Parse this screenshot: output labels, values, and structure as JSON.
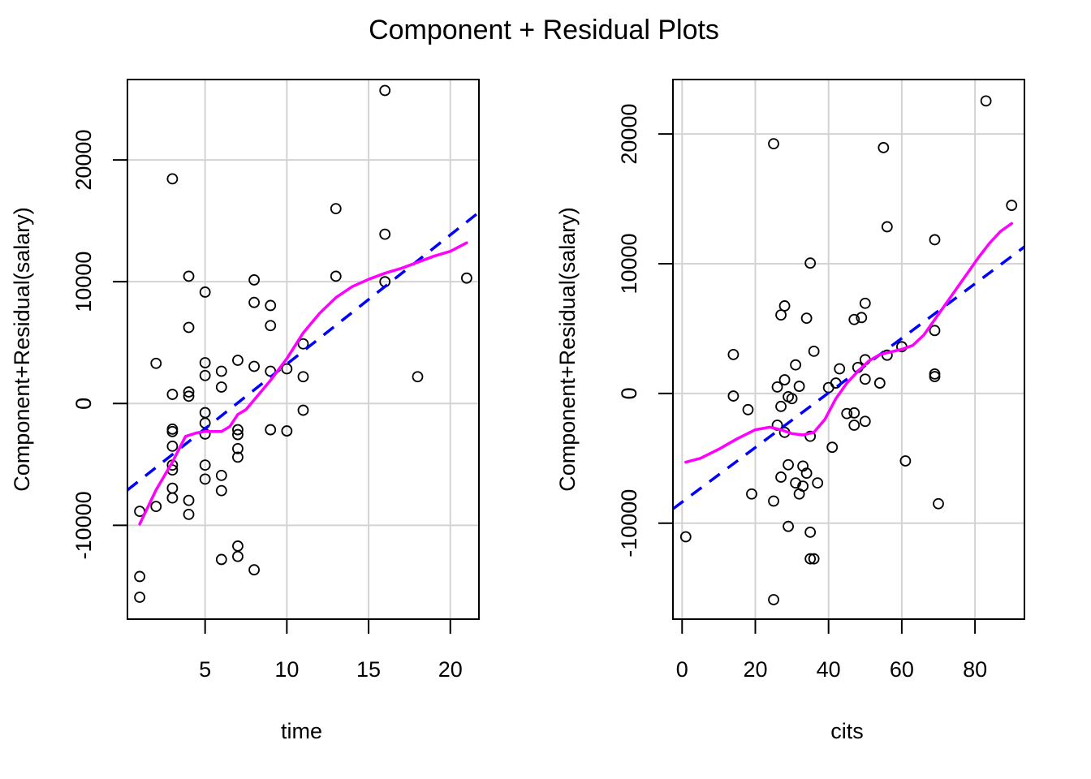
{
  "chart_data": {
    "title": "Component + Residual Plots",
    "panels": [
      {
        "type": "scatter",
        "xlabel": "time",
        "ylabel": "Component+Residual(salary)",
        "xlim": [
          0.25,
          21.75
        ],
        "ylim": [
          -17700,
          26600
        ],
        "x_ticks": [
          5,
          10,
          15,
          20
        ],
        "y_ticks": [
          -10000,
          0,
          10000,
          20000
        ],
        "grid": true,
        "points": [
          [
            16,
            25700
          ],
          [
            3,
            18450
          ],
          [
            13,
            16000
          ],
          [
            16,
            13900
          ],
          [
            4,
            10450
          ],
          [
            13,
            10450
          ],
          [
            8,
            10150
          ],
          [
            16,
            10000
          ],
          [
            21,
            10300
          ],
          [
            5,
            9150
          ],
          [
            8,
            8300
          ],
          [
            9,
            8050
          ],
          [
            4,
            6250
          ],
          [
            9,
            6400
          ],
          [
            11,
            4900
          ],
          [
            2,
            3300
          ],
          [
            5,
            3350
          ],
          [
            7,
            3550
          ],
          [
            6,
            2650
          ],
          [
            9,
            2650
          ],
          [
            10,
            2850
          ],
          [
            8,
            3050
          ],
          [
            5,
            2300
          ],
          [
            11,
            2200
          ],
          [
            18,
            2200
          ],
          [
            6,
            1350
          ],
          [
            3,
            750
          ],
          [
            4,
            950
          ],
          [
            4,
            600
          ],
          [
            5,
            -750
          ],
          [
            5,
            -1600
          ],
          [
            5,
            -2500
          ],
          [
            3,
            -2100
          ],
          [
            3,
            -2300
          ],
          [
            11,
            -550
          ],
          [
            9,
            -2150
          ],
          [
            10,
            -2250
          ],
          [
            7,
            -2150
          ],
          [
            7,
            -2550
          ],
          [
            3,
            -3500
          ],
          [
            7,
            -3700
          ],
          [
            7,
            -4400
          ],
          [
            3,
            -5050
          ],
          [
            3,
            -5450
          ],
          [
            5,
            -5050
          ],
          [
            5,
            -6200
          ],
          [
            6,
            -5900
          ],
          [
            3,
            -6950
          ],
          [
            6,
            -7150
          ],
          [
            2,
            -8450
          ],
          [
            3,
            -7750
          ],
          [
            4,
            -7950
          ],
          [
            4,
            -9100
          ],
          [
            1,
            -8850
          ],
          [
            7,
            -11700
          ],
          [
            7,
            -12550
          ],
          [
            6,
            -12800
          ],
          [
            8,
            -13650
          ],
          [
            1,
            -14200
          ],
          [
            1,
            -15900
          ]
        ],
        "fit_line": {
          "name": "linear fit",
          "style": "dashed",
          "color": "#0000ff",
          "x": [
            0.25,
            21.75
          ],
          "y": [
            -7100,
            15700
          ]
        },
        "smooth": {
          "name": "smoother",
          "color": "#ff00ff",
          "points": [
            [
              1,
              -9900
            ],
            [
              2,
              -7100
            ],
            [
              3,
              -4800
            ],
            [
              3.8,
              -2700
            ],
            [
              4.5,
              -2400
            ],
            [
              5,
              -2300
            ],
            [
              6,
              -2300
            ],
            [
              6.5,
              -1900
            ],
            [
              7,
              -900
            ],
            [
              7.5,
              -500
            ],
            [
              8,
              300
            ],
            [
              9,
              1900
            ],
            [
              10,
              3700
            ],
            [
              11,
              5800
            ],
            [
              12,
              7400
            ],
            [
              13,
              8700
            ],
            [
              14,
              9600
            ],
            [
              15,
              10200
            ],
            [
              16,
              10700
            ],
            [
              17,
              11100
            ],
            [
              18,
              11600
            ],
            [
              19,
              12100
            ],
            [
              20,
              12500
            ],
            [
              21,
              13200
            ]
          ]
        }
      },
      {
        "type": "scatter",
        "xlabel": "cits",
        "ylabel": "Component+Residual(salary)",
        "xlim": [
          -2.5,
          93.5
        ],
        "ylim": [
          -17400,
          24200
        ],
        "x_ticks": [
          0,
          20,
          40,
          60,
          80
        ],
        "y_ticks": [
          -10000,
          0,
          10000,
          20000
        ],
        "grid": true,
        "points": [
          [
            83,
            22550
          ],
          [
            25,
            19250
          ],
          [
            55,
            18950
          ],
          [
            90,
            14500
          ],
          [
            56,
            12850
          ],
          [
            69,
            11850
          ],
          [
            35,
            10050
          ],
          [
            28,
            6750
          ],
          [
            50,
            6950
          ],
          [
            27,
            6050
          ],
          [
            34,
            5800
          ],
          [
            49,
            5850
          ],
          [
            47,
            5700
          ],
          [
            36,
            3250
          ],
          [
            14,
            3000
          ],
          [
            56,
            2950
          ],
          [
            60,
            3600
          ],
          [
            69,
            4850
          ],
          [
            31,
            2200
          ],
          [
            43,
            1900
          ],
          [
            50,
            2600
          ],
          [
            48,
            2000
          ],
          [
            42,
            800
          ],
          [
            54,
            800
          ],
          [
            50,
            1100
          ],
          [
            40,
            450
          ],
          [
            26,
            500
          ],
          [
            28,
            1050
          ],
          [
            32,
            550
          ],
          [
            69,
            1500
          ],
          [
            69,
            1300
          ],
          [
            29,
            -250
          ],
          [
            30,
            -400
          ],
          [
            14,
            -200
          ],
          [
            18,
            -1250
          ],
          [
            27,
            -1000
          ],
          [
            47,
            -1500
          ],
          [
            45,
            -1550
          ],
          [
            47,
            -2450
          ],
          [
            50,
            -2150
          ],
          [
            26,
            -2450
          ],
          [
            28,
            -3000
          ],
          [
            35,
            -3300
          ],
          [
            41,
            -4150
          ],
          [
            61,
            -5200
          ],
          [
            29,
            -5500
          ],
          [
            33,
            -5600
          ],
          [
            27,
            -6450
          ],
          [
            34,
            -6150
          ],
          [
            37,
            -6900
          ],
          [
            31,
            -6900
          ],
          [
            33,
            -7150
          ],
          [
            19,
            -7750
          ],
          [
            32,
            -7750
          ],
          [
            25,
            -8300
          ],
          [
            70,
            -8500
          ],
          [
            29,
            -10250
          ],
          [
            35,
            -10700
          ],
          [
            35,
            -12750
          ],
          [
            36,
            -12750
          ],
          [
            1,
            -11050
          ],
          [
            25,
            -15900
          ]
        ],
        "fit_line": {
          "name": "linear fit",
          "style": "dashed",
          "color": "#0000ff",
          "x": [
            -2.5,
            93.5
          ],
          "y": [
            -8900,
            11300
          ]
        },
        "smooth": {
          "name": "smoother",
          "color": "#ff00ff",
          "points": [
            [
              1,
              -5300
            ],
            [
              5,
              -5000
            ],
            [
              10,
              -4300
            ],
            [
              15,
              -3500
            ],
            [
              20,
              -2800
            ],
            [
              24,
              -2600
            ],
            [
              27,
              -2800
            ],
            [
              30,
              -3100
            ],
            [
              33,
              -3200
            ],
            [
              36,
              -3000
            ],
            [
              39,
              -2000
            ],
            [
              42,
              -400
            ],
            [
              45,
              800
            ],
            [
              48,
              1700
            ],
            [
              51,
              2500
            ],
            [
              54,
              3000
            ],
            [
              57,
              3200
            ],
            [
              60,
              3400
            ],
            [
              63,
              3700
            ],
            [
              66,
              4500
            ],
            [
              69,
              5700
            ],
            [
              72,
              6900
            ],
            [
              75,
              8100
            ],
            [
              78,
              9300
            ],
            [
              81,
              10500
            ],
            [
              84,
              11600
            ],
            [
              87,
              12500
            ],
            [
              90,
              13100
            ]
          ]
        }
      }
    ]
  }
}
